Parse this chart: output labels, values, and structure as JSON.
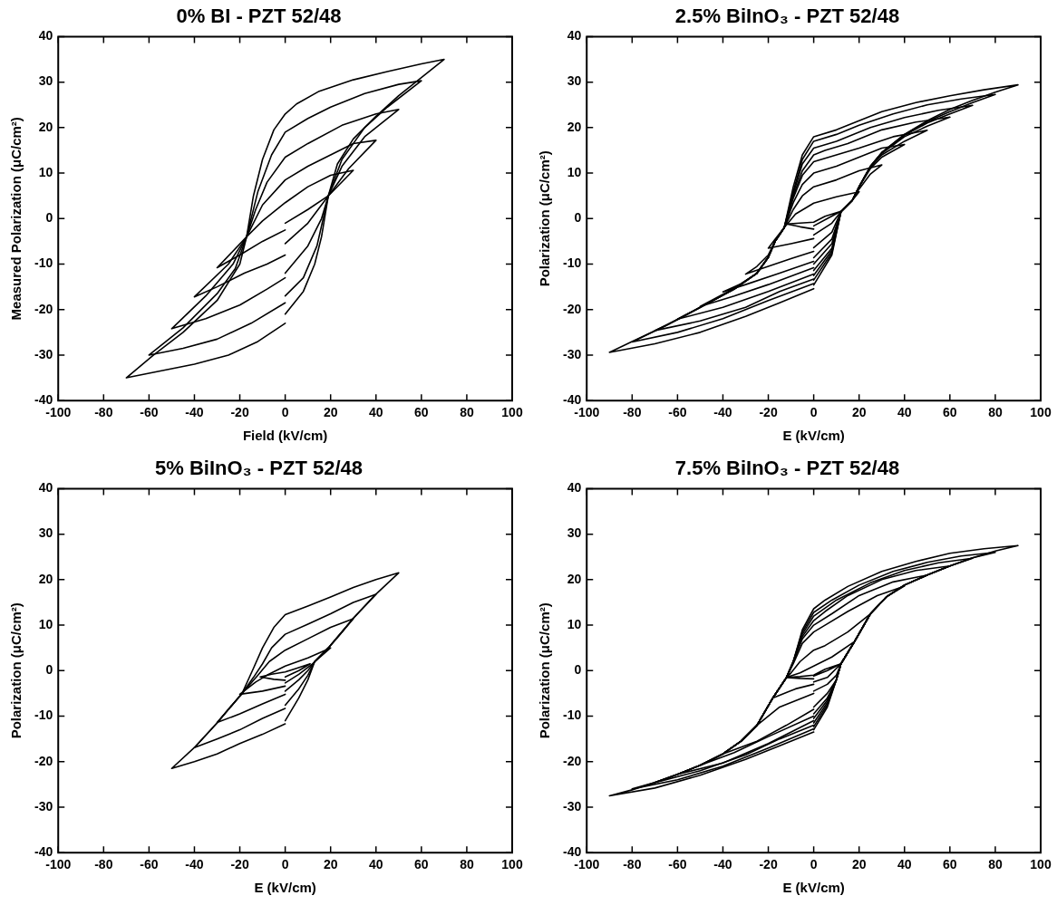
{
  "chart_data": [
    {
      "type": "line",
      "title": "0% BI - PZT 52/48",
      "xlabel": "Field (kV/cm)",
      "ylabel": "Measured Polarization (μC/cm²)",
      "xlim": [
        -100,
        100
      ],
      "xticks": [
        -100,
        -80,
        -60,
        -40,
        -20,
        0,
        20,
        40,
        60,
        80,
        100
      ],
      "ylim": [
        -40,
        40
      ],
      "yticks": [
        -40,
        -30,
        -20,
        -10,
        0,
        10,
        20,
        30,
        40
      ],
      "marker": "none",
      "line_style": "solid",
      "grid": false,
      "legend": false,
      "series": [
        {
          "color": "#000000",
          "x": [
            0,
            8,
            13,
            16,
            19,
            23,
            30,
            40,
            50,
            60,
            70,
            60,
            45,
            30,
            15,
            5,
            0,
            -5,
            -10,
            -14,
            -17,
            -20,
            -30,
            -45,
            -58,
            -70,
            -55,
            -40,
            -25,
            -12,
            0
          ],
          "values": [
            -21,
            -16,
            -10,
            -4,
            5,
            12,
            17.5,
            22.5,
            27,
            31,
            35,
            34,
            32.3,
            30.5,
            28,
            25.2,
            23,
            19.5,
            13,
            5,
            -4,
            -10,
            -18,
            -25,
            -30,
            -35,
            -33.5,
            -32,
            -30,
            -27,
            -23
          ]
        },
        {
          "color": "#000000",
          "x": [
            0,
            8,
            14,
            19,
            25,
            35,
            45,
            60,
            50,
            35,
            20,
            10,
            0,
            -6,
            -12,
            -17,
            -22,
            -30,
            -45,
            -60,
            -45,
            -30,
            -15,
            0
          ],
          "values": [
            -17,
            -13,
            -6,
            5,
            13,
            20,
            24.5,
            30.3,
            29.5,
            27.5,
            24.5,
            22,
            19,
            14,
            6,
            -4,
            -11,
            -16.5,
            -24,
            -30,
            -28.5,
            -26.5,
            -23,
            -18.5
          ]
        },
        {
          "color": "#000000",
          "x": [
            0,
            10,
            16,
            19,
            25,
            35,
            50,
            40,
            25,
            10,
            0,
            -8,
            -13,
            -17,
            -23,
            -35,
            -50,
            -35,
            -20,
            -8,
            0
          ],
          "values": [
            -12,
            -6,
            0,
            5,
            11.5,
            18,
            24,
            23,
            20.5,
            16.5,
            13.5,
            8,
            2,
            -4,
            -10,
            -17,
            -24.2,
            -22,
            -19,
            -15.5,
            -13
          ]
        },
        {
          "color": "#000000",
          "x": [
            0,
            10,
            19,
            28,
            40,
            30,
            20,
            10,
            0,
            -10,
            -17,
            -25,
            -40,
            -30,
            -18,
            -8,
            0
          ],
          "values": [
            -5.5,
            -1,
            5,
            11,
            17.2,
            16.5,
            14,
            11.5,
            8.5,
            3,
            -4,
            -10,
            -17.2,
            -15,
            -12,
            -10,
            -8
          ]
        },
        {
          "color": "#000000",
          "x": [
            0,
            10,
            19,
            30,
            20,
            10,
            0,
            -10,
            -17,
            -30,
            -20,
            -10,
            0
          ],
          "values": [
            -1,
            2,
            5,
            10.6,
            9.5,
            7,
            3.5,
            -0.5,
            -4,
            -10.8,
            -8,
            -5,
            -2.5
          ]
        }
      ]
    },
    {
      "type": "line",
      "title": "2.5% BiInO₃ - PZT 52/48",
      "xlabel": "E (kV/cm)",
      "ylabel": "Polarization (μC/cm²)",
      "xlim": [
        -100,
        100
      ],
      "xticks": [
        -100,
        -80,
        -60,
        -40,
        -20,
        0,
        20,
        40,
        60,
        80,
        100
      ],
      "ylim": [
        -40,
        40
      ],
      "yticks": [
        -40,
        -30,
        -20,
        -10,
        0,
        10,
        20,
        30,
        40
      ],
      "marker": "none",
      "line_style": "solid",
      "grid": false,
      "legend": false,
      "series": [
        {
          "color": "#000000",
          "x": [
            0,
            8,
            12,
            17,
            20,
            25,
            30,
            40,
            50,
            60,
            70,
            80,
            90,
            75,
            60,
            45,
            30,
            20,
            10,
            0,
            -5,
            -9,
            -13,
            -17,
            -20,
            -25,
            -35,
            -50,
            -65,
            -80,
            -90,
            -70,
            -50,
            -30,
            -15,
            0
          ],
          "values": [
            -14.6,
            -8,
            1.5,
            4,
            7,
            11.5,
            14.5,
            18.5,
            21.5,
            24,
            26,
            27.8,
            29.4,
            28.3,
            27,
            25.5,
            23.5,
            21.5,
            19.5,
            18,
            14,
            7,
            -2,
            -5,
            -8.5,
            -12,
            -15.5,
            -19.5,
            -23.5,
            -27,
            -29.4,
            -27.5,
            -25,
            -21.5,
            -18.5,
            -15.4
          ]
        },
        {
          "color": "#000000",
          "x": [
            0,
            8,
            12,
            17,
            20,
            25,
            30,
            40,
            50,
            60,
            70,
            80,
            65,
            50,
            35,
            20,
            10,
            0,
            -5,
            -9,
            -13,
            -17,
            -20,
            -25,
            -35,
            -50,
            -65,
            -80,
            -60,
            -40,
            -20,
            0
          ],
          "values": [
            -13.5,
            -7.5,
            1.5,
            4,
            7,
            11.5,
            14.5,
            18.5,
            21.3,
            23.5,
            25.5,
            27.3,
            26.3,
            25,
            23,
            20.5,
            18.5,
            17,
            13,
            6,
            -2,
            -5,
            -8.5,
            -12,
            -15.5,
            -19.5,
            -23.5,
            -27.1,
            -25,
            -22,
            -18,
            -14.3
          ]
        },
        {
          "color": "#000000",
          "x": [
            0,
            8,
            12,
            17,
            20,
            25,
            30,
            40,
            50,
            60,
            70,
            55,
            40,
            25,
            10,
            0,
            -5,
            -9,
            -13,
            -17,
            -20,
            -25,
            -35,
            -50,
            -60,
            -70,
            -50,
            -30,
            -15,
            0
          ],
          "values": [
            -12.5,
            -7,
            1.5,
            4,
            7,
            11.5,
            14.5,
            18.3,
            21,
            23,
            24.9,
            23.8,
            22.2,
            20,
            17,
            15.5,
            12,
            5.5,
            -2,
            -5,
            -8.5,
            -12,
            -15.5,
            -19.5,
            -22.2,
            -24.6,
            -22.5,
            -19.5,
            -16,
            -13.3
          ]
        },
        {
          "color": "#000000",
          "x": [
            0,
            8,
            12,
            17,
            20,
            25,
            30,
            40,
            50,
            60,
            45,
            30,
            15,
            5,
            0,
            -5,
            -9,
            -13,
            -17,
            -20,
            -25,
            -35,
            -50,
            -60,
            -40,
            -20,
            0
          ],
          "values": [
            -11.4,
            -6.5,
            1.5,
            4,
            7,
            11.5,
            14.3,
            18,
            20.3,
            22.3,
            21.2,
            19.5,
            16.5,
            15,
            14,
            10.5,
            5,
            -2,
            -5,
            -8.5,
            -12,
            -15.5,
            -19.5,
            -22.1,
            -19.5,
            -16,
            -12.2
          ]
        },
        {
          "color": "#000000",
          "x": [
            0,
            8,
            12,
            17,
            20,
            25,
            30,
            40,
            50,
            35,
            20,
            10,
            0,
            -5,
            -9,
            -13,
            -17,
            -20,
            -25,
            -35,
            -50,
            -35,
            -20,
            0
          ],
          "values": [
            -10,
            -5.5,
            1.5,
            4,
            7,
            11.3,
            14,
            17,
            19.4,
            18,
            15.5,
            14,
            12.5,
            9.5,
            4.5,
            -2,
            -5,
            -8.5,
            -12,
            -15.3,
            -19.3,
            -17,
            -14.5,
            -10.8
          ]
        },
        {
          "color": "#000000",
          "x": [
            0,
            8,
            12,
            17,
            20,
            25,
            30,
            40,
            30,
            20,
            10,
            0,
            -5,
            -9,
            -13,
            -17,
            -20,
            -25,
            -32,
            -40,
            -30,
            -15,
            0
          ],
          "values": [
            -8.6,
            -4.5,
            1.5,
            4,
            7,
            11,
            13.5,
            16.3,
            15.5,
            13.5,
            11.5,
            10,
            7.5,
            3.5,
            -2,
            -5,
            -8.5,
            -12,
            -14.3,
            -16.1,
            -14.5,
            -12,
            -9.4
          ]
        },
        {
          "color": "#000000",
          "x": [
            0,
            8,
            12,
            17,
            20,
            25,
            30,
            20,
            10,
            0,
            -5,
            -9,
            -13,
            -17,
            -20,
            -25,
            -30,
            -20,
            -10,
            0
          ],
          "values": [
            -6.4,
            -3,
            1.5,
            4,
            6.5,
            9.8,
            11.8,
            10.5,
            8.5,
            7,
            5,
            2,
            -2,
            -5,
            -8,
            -10.5,
            -12.2,
            -10.5,
            -8.8,
            -7.2
          ]
        },
        {
          "color": "#000000",
          "x": [
            0,
            8,
            12,
            17,
            20,
            10,
            0,
            -8,
            -13,
            -17,
            -20,
            -10,
            0
          ],
          "values": [
            -3.6,
            -1,
            1.5,
            4,
            5.9,
            4.8,
            3.4,
            1,
            -2,
            -4.5,
            -6.5,
            -5.5,
            -4.4
          ]
        },
        {
          "color": "#000000",
          "x": [
            0,
            6,
            12,
            5,
            0,
            -6,
            -12,
            -6,
            0
          ],
          "values": [
            -1.6,
            0,
            1.6,
            0.5,
            -0.8,
            -1,
            -1.2,
            -1.8,
            -2.3
          ]
        }
      ]
    },
    {
      "type": "line",
      "title": "5% BiInO₃ - PZT 52/48",
      "xlabel": "E (kV/cm)",
      "ylabel": "Polarization (μC/cm²)",
      "xlim": [
        -100,
        100
      ],
      "xticks": [
        -100,
        -80,
        -60,
        -40,
        -20,
        0,
        20,
        40,
        60,
        80,
        100
      ],
      "ylim": [
        -40,
        40
      ],
      "yticks": [
        -40,
        -30,
        -20,
        -10,
        0,
        10,
        20,
        30,
        40
      ],
      "marker": "none",
      "line_style": "solid",
      "grid": false,
      "legend": false,
      "series": [
        {
          "color": "#000000",
          "x": [
            0,
            6,
            10,
            13,
            19,
            25,
            30,
            40,
            50,
            40,
            30,
            20,
            10,
            0,
            -5,
            -10,
            -14,
            -19,
            -25,
            -30,
            -40,
            -50,
            -40,
            -30,
            -20,
            -10,
            0
          ],
          "values": [
            -11,
            -6,
            -2,
            2,
            5,
            8.5,
            11.5,
            16.8,
            21.5,
            20,
            18.3,
            16.2,
            14.2,
            12.3,
            9.5,
            5,
            0.5,
            -5,
            -8.5,
            -11.5,
            -16.9,
            -21.5,
            -20,
            -18.3,
            -16,
            -14,
            -11.7
          ]
        },
        {
          "color": "#000000",
          "x": [
            0,
            6,
            10,
            13,
            19,
            25,
            30,
            40,
            30,
            20,
            10,
            0,
            -6,
            -10,
            -14,
            -19,
            -25,
            -30,
            -40,
            -30,
            -20,
            -10,
            0
          ],
          "values": [
            -7.6,
            -4,
            -1,
            2,
            5,
            8.5,
            11.5,
            16.8,
            15,
            12.5,
            10.2,
            8,
            5,
            1.5,
            -1.5,
            -5,
            -8.5,
            -11.5,
            -16.9,
            -15,
            -13,
            -10.5,
            -8.3
          ]
        },
        {
          "color": "#000000",
          "x": [
            0,
            6,
            10,
            13,
            19,
            25,
            30,
            20,
            10,
            0,
            -7,
            -12,
            -19,
            -25,
            -30,
            -20,
            -10,
            0
          ],
          "values": [
            -4.5,
            -2,
            0,
            2,
            5,
            8.5,
            11.4,
            9.5,
            7,
            4.5,
            2,
            -1,
            -5,
            -8.5,
            -11.4,
            -9.5,
            -7.3,
            -5.2
          ]
        },
        {
          "color": "#000000",
          "x": [
            0,
            6,
            12,
            20,
            10,
            0,
            -8,
            -13,
            -20,
            -10,
            0
          ],
          "values": [
            -2.7,
            -0.8,
            1.5,
            5,
            2.8,
            1,
            -1,
            -2.5,
            -5.2,
            -4.5,
            -3.4
          ]
        },
        {
          "color": "#000000",
          "x": [
            0,
            6,
            11,
            5,
            0,
            -6,
            -11,
            -5,
            0
          ],
          "values": [
            -1.4,
            0,
            1.5,
            0.5,
            -0.3,
            -0.8,
            -1.4,
            -1.9,
            -2.1
          ]
        }
      ]
    },
    {
      "type": "line",
      "title": "7.5% BiInO₃ - PZT 52/48",
      "xlabel": "E (kV/cm)",
      "ylabel": "Polarization (μC/cm²)",
      "xlim": [
        -100,
        100
      ],
      "xticks": [
        -100,
        -80,
        -60,
        -40,
        -20,
        0,
        20,
        40,
        60,
        80,
        100
      ],
      "ylim": [
        -40,
        40
      ],
      "yticks": [
        -40,
        -30,
        -20,
        -10,
        0,
        10,
        20,
        30,
        40
      ],
      "marker": "none",
      "line_style": "solid",
      "grid": false,
      "legend": false,
      "series": [
        {
          "color": "#000000",
          "x": [
            0,
            6,
            10,
            12,
            18,
            25,
            32,
            40,
            50,
            60,
            70,
            80,
            90,
            75,
            60,
            45,
            30,
            15,
            5,
            0,
            -5,
            -9,
            -12,
            -18,
            -25,
            -32,
            -40,
            -50,
            -60,
            -70,
            -80,
            -90,
            -70,
            -50,
            -30,
            -15,
            0
          ],
          "values": [
            -13,
            -8,
            -2,
            1.5,
            6.4,
            12.5,
            16.2,
            18.8,
            21,
            23,
            24.8,
            26.3,
            27.5,
            26.8,
            25.8,
            24,
            21.8,
            18.5,
            15.5,
            13.6,
            9,
            2,
            -1.5,
            -6,
            -12,
            -15.5,
            -18.3,
            -20.8,
            -22.8,
            -24.6,
            -26.2,
            -27.5,
            -25.8,
            -23,
            -19.5,
            -16.5,
            -13.5
          ]
        },
        {
          "color": "#000000",
          "x": [
            0,
            6,
            10,
            12,
            18,
            25,
            32,
            40,
            50,
            60,
            70,
            80,
            65,
            50,
            35,
            20,
            8,
            0,
            -5,
            -9,
            -12,
            -18,
            -25,
            -32,
            -40,
            -50,
            -60,
            -70,
            -80,
            -60,
            -40,
            -20,
            0
          ],
          "values": [
            -12.3,
            -7.5,
            -2,
            1.5,
            6.4,
            12.5,
            16.2,
            18.8,
            21,
            23,
            24.8,
            26,
            25.2,
            23.8,
            21.8,
            18.8,
            15.5,
            12.8,
            8.5,
            2,
            -1.5,
            -6,
            -12,
            -15.5,
            -18.3,
            -20.8,
            -22.8,
            -24.6,
            -26,
            -24,
            -21,
            -17,
            -12.8
          ]
        },
        {
          "color": "#000000",
          "x": [
            0,
            6,
            10,
            12,
            18,
            25,
            32,
            40,
            50,
            60,
            70,
            55,
            40,
            25,
            10,
            0,
            -5,
            -9,
            -12,
            -18,
            -25,
            -32,
            -40,
            -50,
            -60,
            -70,
            -50,
            -30,
            -15,
            0
          ],
          "values": [
            -11.5,
            -7,
            -2,
            1.5,
            6.4,
            12.5,
            16.2,
            18.8,
            21,
            23,
            24.7,
            23.7,
            22,
            19.3,
            15.5,
            12,
            8,
            2,
            -1.5,
            -6,
            -12,
            -15.5,
            -18.3,
            -20.8,
            -22.8,
            -24.6,
            -22,
            -18.5,
            -15,
            -12
          ]
        },
        {
          "color": "#000000",
          "x": [
            0,
            6,
            10,
            12,
            18,
            25,
            32,
            40,
            50,
            60,
            45,
            30,
            15,
            5,
            0,
            -5,
            -9,
            -12,
            -18,
            -25,
            -32,
            -40,
            -50,
            -60,
            -40,
            -20,
            0
          ],
          "values": [
            -10.5,
            -6.5,
            -2,
            1.5,
            6.4,
            12.5,
            16.2,
            18.8,
            21,
            23,
            22,
            20,
            16.5,
            13,
            11,
            7.5,
            2,
            -1.5,
            -6,
            -12,
            -15.5,
            -18.3,
            -20.8,
            -22.8,
            -20.3,
            -16,
            -11
          ]
        },
        {
          "color": "#000000",
          "x": [
            0,
            6,
            10,
            12,
            18,
            25,
            32,
            40,
            50,
            35,
            20,
            8,
            0,
            -5,
            -9,
            -12,
            -18,
            -25,
            -32,
            -40,
            -50,
            -35,
            -20,
            0
          ],
          "values": [
            -9.5,
            -6,
            -2,
            1.5,
            6.4,
            12.5,
            16.2,
            18.8,
            21,
            19.5,
            16.5,
            12.5,
            10,
            7,
            2,
            -1.5,
            -6,
            -12,
            -15.5,
            -18.3,
            -20.8,
            -18,
            -14.5,
            -10
          ]
        },
        {
          "color": "#000000",
          "x": [
            0,
            6,
            10,
            12,
            18,
            25,
            32,
            40,
            28,
            15,
            5,
            0,
            -5,
            -9,
            -12,
            -18,
            -25,
            -32,
            -40,
            -25,
            -12,
            0
          ],
          "values": [
            -8,
            -5,
            -2,
            1.5,
            6.4,
            12.5,
            16.2,
            18.6,
            16.5,
            13,
            10,
            8.5,
            6,
            1.5,
            -1.5,
            -6,
            -12,
            -15.5,
            -18.3,
            -15.5,
            -12,
            -8.5
          ]
        },
        {
          "color": "#000000",
          "x": [
            0,
            6,
            10,
            12,
            18,
            25,
            15,
            5,
            0,
            -6,
            -10,
            -12,
            -18,
            -25,
            -15,
            -5,
            0
          ],
          "values": [
            -4.5,
            -3,
            -1,
            1.5,
            6.4,
            12.5,
            8.5,
            5.5,
            4.5,
            2,
            -0.5,
            -1.5,
            -6,
            -12,
            -8,
            -6,
            -5
          ]
        },
        {
          "color": "#000000",
          "x": [
            0,
            6,
            12,
            18,
            8,
            0,
            -6,
            -12,
            -18,
            -8,
            0
          ],
          "values": [
            -2.5,
            -1.5,
            1.5,
            6.4,
            3,
            1,
            -0.5,
            -1.5,
            -6,
            -4,
            -3
          ]
        },
        {
          "color": "#000000",
          "x": [
            0,
            6,
            12,
            5,
            0,
            -6,
            -12,
            -6,
            0
          ],
          "values": [
            -1.2,
            0,
            1.5,
            0.3,
            -1,
            -1.3,
            -1.5,
            -1.7,
            -1.8
          ]
        }
      ]
    }
  ]
}
